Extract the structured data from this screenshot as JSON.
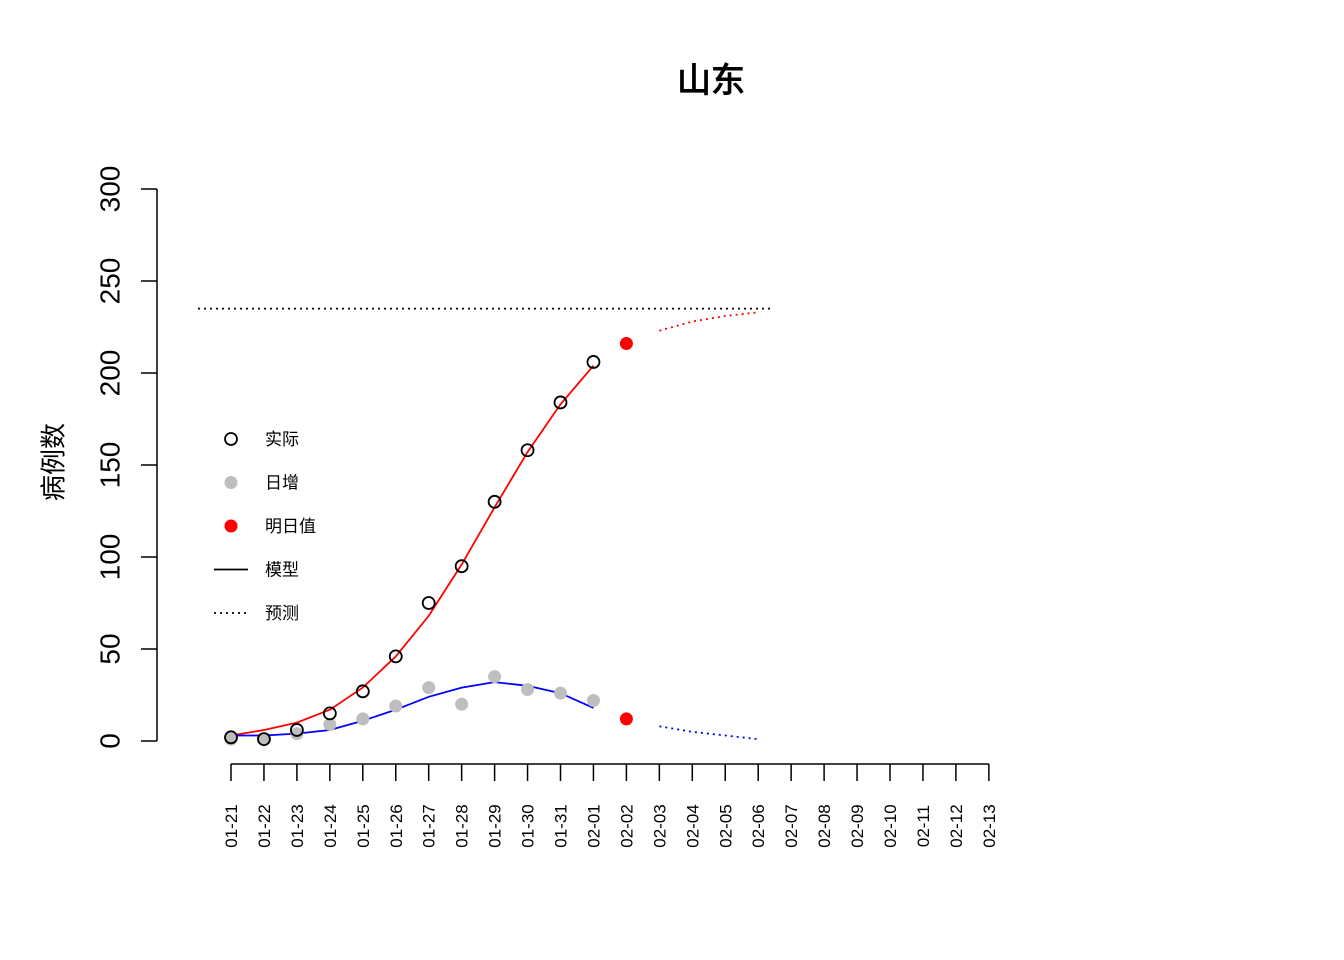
{
  "chart_data": {
    "type": "line",
    "title": "山东",
    "xlabel": "",
    "ylabel": "病例数",
    "ylim": [
      0,
      300
    ],
    "yticks": [
      0,
      50,
      100,
      150,
      200,
      250,
      300
    ],
    "categories": [
      "01-21",
      "01-22",
      "01-23",
      "01-24",
      "01-25",
      "01-26",
      "01-27",
      "01-28",
      "01-29",
      "01-30",
      "01-31",
      "02-01",
      "02-02",
      "02-03",
      "02-04",
      "02-05",
      "02-06",
      "02-07",
      "02-08",
      "02-09",
      "02-10",
      "02-11",
      "02-12",
      "02-13"
    ],
    "legend": {
      "position": "left",
      "entries": [
        {
          "label": "实际",
          "symbol": "open-circle",
          "color": "#000000"
        },
        {
          "label": "日增",
          "symbol": "filled-circle",
          "color": "#bebebe"
        },
        {
          "label": "明日值",
          "symbol": "filled-circle",
          "color": "#ff0000"
        },
        {
          "label": "模型",
          "symbol": "solid-line",
          "color": "#000000"
        },
        {
          "label": "预测",
          "symbol": "dotted-line",
          "color": "#000000"
        }
      ]
    },
    "colors": {
      "cumulative": "#ff0000",
      "daily": "#0000ff",
      "daily_points": "#bebebe",
      "tomorrow": "#ff0000",
      "asymptote": "#000000"
    },
    "series": [
      {
        "key": "actual_cumulative",
        "style": "open-circle",
        "x": [
          "01-21",
          "01-22",
          "01-23",
          "01-24",
          "01-25",
          "01-26",
          "01-27",
          "01-28",
          "01-29",
          "01-30",
          "01-31",
          "02-01"
        ],
        "values": [
          2,
          1,
          6,
          15,
          27,
          46,
          75,
          95,
          130,
          158,
          184,
          206
        ]
      },
      {
        "key": "actual_daily",
        "style": "filled-circle",
        "x": [
          "01-21",
          "01-22",
          "01-23",
          "01-24",
          "01-25",
          "01-26",
          "01-27",
          "01-28",
          "01-29",
          "01-30",
          "01-31",
          "02-01"
        ],
        "values": [
          1,
          1,
          4,
          9,
          12,
          19,
          29,
          20,
          35,
          28,
          26,
          22
        ]
      },
      {
        "key": "tomorrow",
        "style": "filled-circle-red",
        "x": [
          "02-02",
          "02-02"
        ],
        "values": [
          216,
          12
        ]
      },
      {
        "key": "model_cumulative",
        "style": "solid",
        "x": [
          "01-21",
          "01-22",
          "01-23",
          "01-24",
          "01-25",
          "01-26",
          "01-27",
          "01-28",
          "01-29",
          "01-30",
          "01-31",
          "02-01"
        ],
        "values": [
          3,
          6,
          10,
          17,
          29,
          46,
          68,
          96,
          127,
          157,
          183,
          204
        ]
      },
      {
        "key": "model_daily",
        "style": "solid",
        "x": [
          "01-21",
          "01-22",
          "01-23",
          "01-24",
          "01-25",
          "01-26",
          "01-27",
          "01-28",
          "01-29",
          "01-30",
          "01-31",
          "02-01"
        ],
        "values": [
          3,
          3,
          4,
          6,
          11,
          17,
          24,
          29,
          32,
          30,
          26,
          18
        ]
      },
      {
        "key": "forecast_cumulative",
        "style": "dotted",
        "x": [
          "02-03",
          "02-04",
          "02-05",
          "02-06"
        ],
        "values": [
          223,
          228,
          231,
          233
        ]
      },
      {
        "key": "forecast_daily",
        "style": "dotted",
        "x": [
          "02-03",
          "02-04",
          "02-05",
          "02-06"
        ],
        "values": [
          8,
          5,
          3,
          1
        ]
      },
      {
        "key": "asymptote",
        "style": "dotted-horizontal",
        "value": 235
      }
    ]
  }
}
